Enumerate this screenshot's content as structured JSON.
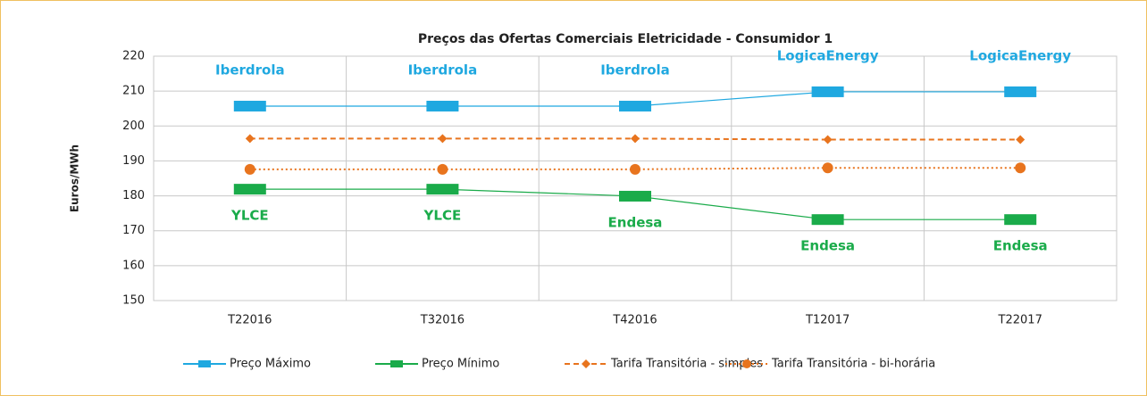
{
  "chart_data": {
    "type": "line",
    "title": "Preços das Ofertas Comerciais Eletricidade - Consumidor 1",
    "y_label": "Euros/MWh",
    "categories": [
      "T22016",
      "T32016",
      "T42016",
      "T12017",
      "T22017"
    ],
    "ylim": [
      150,
      220
    ],
    "yticks": [
      150,
      160,
      170,
      180,
      190,
      200,
      210,
      220
    ],
    "grid": true,
    "series": [
      {
        "name": "Preço Máximo",
        "color": "#1fa8e0",
        "marker": "bar",
        "dash": "solid",
        "values": [
          205.7,
          205.7,
          205.7,
          209.8,
          209.8
        ],
        "labels": [
          "Iberdrola",
          "Iberdrola",
          "Iberdrola",
          "LogicaEnergy",
          "LogicaEnergy"
        ],
        "label_position": "above"
      },
      {
        "name": "Preço Mínimo",
        "color": "#1aab4a",
        "marker": "bar",
        "dash": "solid",
        "values": [
          181.9,
          181.9,
          179.9,
          173.2,
          173.2
        ],
        "labels": [
          "YLCE",
          "YLCE",
          "Endesa",
          "Endesa",
          "Endesa"
        ],
        "label_position": "below"
      },
      {
        "name": "Tarifa Transitória - simples",
        "color": "#e8741e",
        "marker": "diamond",
        "dash": "dashed",
        "values": [
          196.4,
          196.4,
          196.4,
          196.1,
          196.1
        ]
      },
      {
        "name": "Tarifa Transitória - bi-horária",
        "color": "#e8741e",
        "marker": "circle",
        "dash": "dotted",
        "values": [
          187.6,
          187.6,
          187.6,
          188.0,
          188.0
        ]
      }
    ]
  }
}
